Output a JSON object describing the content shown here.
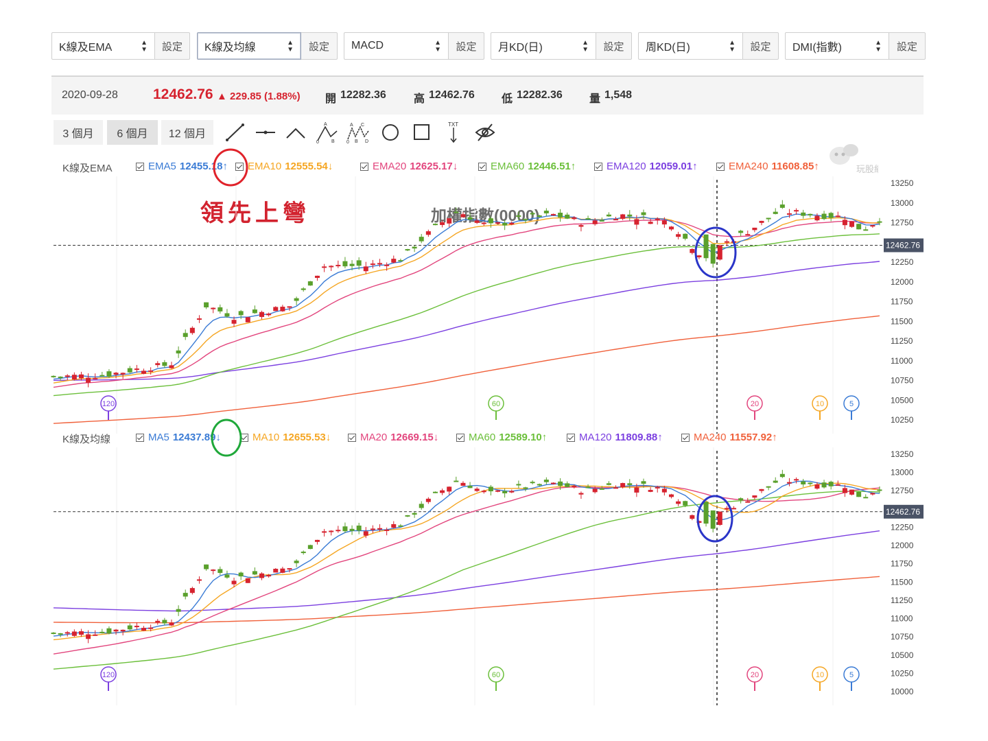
{
  "selectors": [
    {
      "value": "K線及EMA",
      "button": "設定"
    },
    {
      "value": "K線及均線",
      "button": "設定"
    },
    {
      "value": "MACD",
      "button": "設定"
    },
    {
      "value": "月KD(日)",
      "button": "設定"
    },
    {
      "value": "周KD(日)",
      "button": "設定"
    },
    {
      "value": "DMI(指數)",
      "button": "設定"
    }
  ],
  "info": {
    "date": "2020-09-28",
    "price": "12462.76",
    "change": "▲ 229.85 (1.88%)",
    "open_label": "開",
    "open": "12282.36",
    "high_label": "高",
    "high": "12462.76",
    "low_label": "低",
    "low": "12282.36",
    "vol_label": "量",
    "vol": "1,548"
  },
  "tabs": [
    "3 個月",
    "6 個月",
    "12 個月"
  ],
  "tools": [
    "line-tool-icon",
    "horizontal-line-icon",
    "angle-tool-icon",
    "abcd-pattern-icon",
    "xabcd-pattern-icon",
    "circle-tool-icon",
    "rectangle-tool-icon",
    "text-tool-icon",
    "hide-eye-icon"
  ],
  "ema_panel": {
    "title": "K線及EMA",
    "legend": [
      {
        "label": "EMA5",
        "value": "12455.18↑",
        "color": "#3a7bd5"
      },
      {
        "label": "EMA10",
        "value": "12555.54↓",
        "color": "#f5a623"
      },
      {
        "label": "EMA20",
        "value": "12625.17↓",
        "color": "#e2457d"
      },
      {
        "label": "EMA60",
        "value": "12446.51↑",
        "color": "#6bbf3a"
      },
      {
        "label": "EMA120",
        "value": "12059.01↑",
        "color": "#7b3fe0"
      },
      {
        "label": "EMA240",
        "value": "11608.85↑",
        "color": "#f0603a"
      }
    ],
    "y_ticks": [
      "13250",
      "13000",
      "12750",
      "12500",
      "12250",
      "12000",
      "11750",
      "11500",
      "11250",
      "11000",
      "10750",
      "10500",
      "10250"
    ],
    "markers": [
      "120",
      "60",
      "20",
      "10",
      "5"
    ],
    "price_tag": "12462.76"
  },
  "ma_panel": {
    "title": "K線及均線",
    "legend": [
      {
        "label": "MA5",
        "value": "12437.89↓",
        "color": "#3a7bd5"
      },
      {
        "label": "MA10",
        "value": "12655.53↓",
        "color": "#f5a623"
      },
      {
        "label": "MA20",
        "value": "12669.15↓",
        "color": "#e2457d"
      },
      {
        "label": "MA60",
        "value": "12589.10↑",
        "color": "#6bbf3a"
      },
      {
        "label": "MA120",
        "value": "11809.88↑",
        "color": "#7b3fe0"
      },
      {
        "label": "MA240",
        "value": "11557.92↑",
        "color": "#f0603a"
      }
    ],
    "y_ticks": [
      "13250",
      "13000",
      "12750",
      "12500",
      "12250",
      "12000",
      "11750",
      "11500",
      "11250",
      "11000",
      "10750",
      "10500",
      "10250",
      "10000"
    ],
    "markers": [
      "120",
      "60",
      "20",
      "10",
      "5"
    ],
    "price_tag": "12462.76"
  },
  "annotation": "領先上彎",
  "chart_title": "加權指數(0000)",
  "logo_text": "玩股網",
  "colors": {
    "up": "#d6232f",
    "down": "#5aa02c",
    "accent_red": "#e0222a",
    "accent_blue": "#2a35c8",
    "accent_green": "#1fa83a"
  }
}
